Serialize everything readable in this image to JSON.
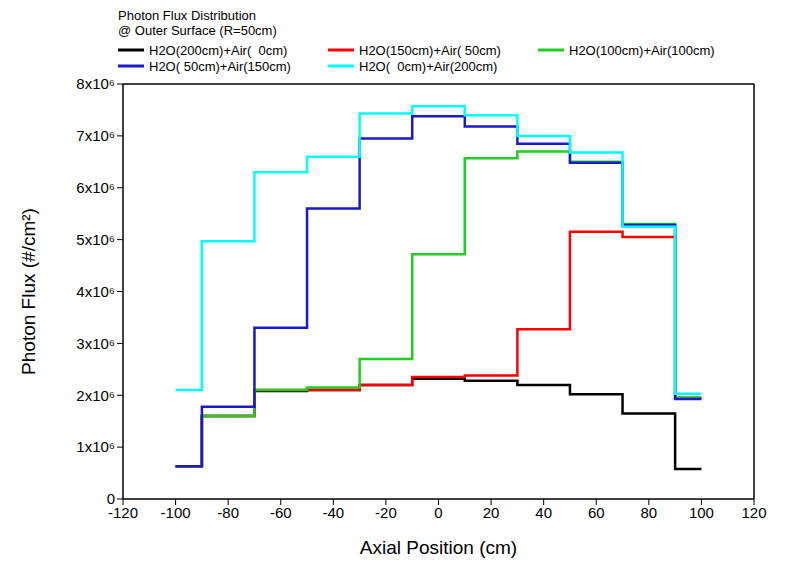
{
  "chart_data": {
    "type": "line",
    "title": "Photon Flux Distribution",
    "subtitle": "@ Outer Surface (R=50cm)",
    "x_label": "Axial Position (cm)",
    "y_label": "Photon Flux (#/cm²)",
    "line_style": "step",
    "bins": [
      -100,
      -90,
      -70,
      -50,
      -30,
      -10,
      10,
      30,
      50,
      70,
      90,
      100
    ],
    "series": [
      {
        "name": "H2O(200cm)+Air(  0cm)",
        "color": "#000000",
        "values": [
          630000,
          1600000,
          2080000,
          2100000,
          2200000,
          2320000,
          2280000,
          2200000,
          2020000,
          1650000,
          580000
        ]
      },
      {
        "name": "H2O(150cm)+Air( 50cm)",
        "color": "#ff0000",
        "values": [
          630000,
          1600000,
          2100000,
          2100000,
          2200000,
          2350000,
          2380000,
          3270000,
          5150000,
          5050000,
          1950000
        ]
      },
      {
        "name": "H2O(100cm)+Air(100cm)",
        "color": "#22cc22",
        "values": [
          630000,
          1600000,
          2100000,
          2150000,
          2700000,
          4720000,
          6570000,
          6700000,
          6500000,
          5300000,
          1950000
        ]
      },
      {
        "name": "H2O( 50cm)+Air(150cm)",
        "color": "#1a1acc",
        "values": [
          630000,
          1780000,
          3300000,
          5600000,
          6950000,
          7380000,
          7180000,
          6850000,
          6480000,
          5280000,
          1930000
        ]
      },
      {
        "name": "H2O(  0cm)+Air(200cm)",
        "color": "#00ffff",
        "values": [
          2100000,
          4970000,
          6300000,
          6600000,
          7430000,
          7570000,
          7400000,
          7000000,
          6680000,
          5250000,
          2030000
        ]
      }
    ],
    "xlim": [
      -120,
      120
    ],
    "xticks": [
      -120,
      -100,
      -80,
      -60,
      -40,
      -20,
      0,
      20,
      40,
      60,
      80,
      100,
      120
    ],
    "ylim": [
      0,
      8000000
    ],
    "yticks": [
      0,
      {
        "value": 1000000,
        "label": "1x10⁶"
      },
      {
        "value": 2000000,
        "label": "2x10⁶"
      },
      {
        "value": 3000000,
        "label": "3x10⁶"
      },
      {
        "value": 4000000,
        "label": "4x10⁶"
      },
      {
        "value": 5000000,
        "label": "5x10⁶"
      },
      {
        "value": 6000000,
        "label": "6x10⁶"
      },
      {
        "value": 7000000,
        "label": "7x10⁶"
      },
      {
        "value": 8000000,
        "label": "8x10⁶"
      }
    ]
  }
}
